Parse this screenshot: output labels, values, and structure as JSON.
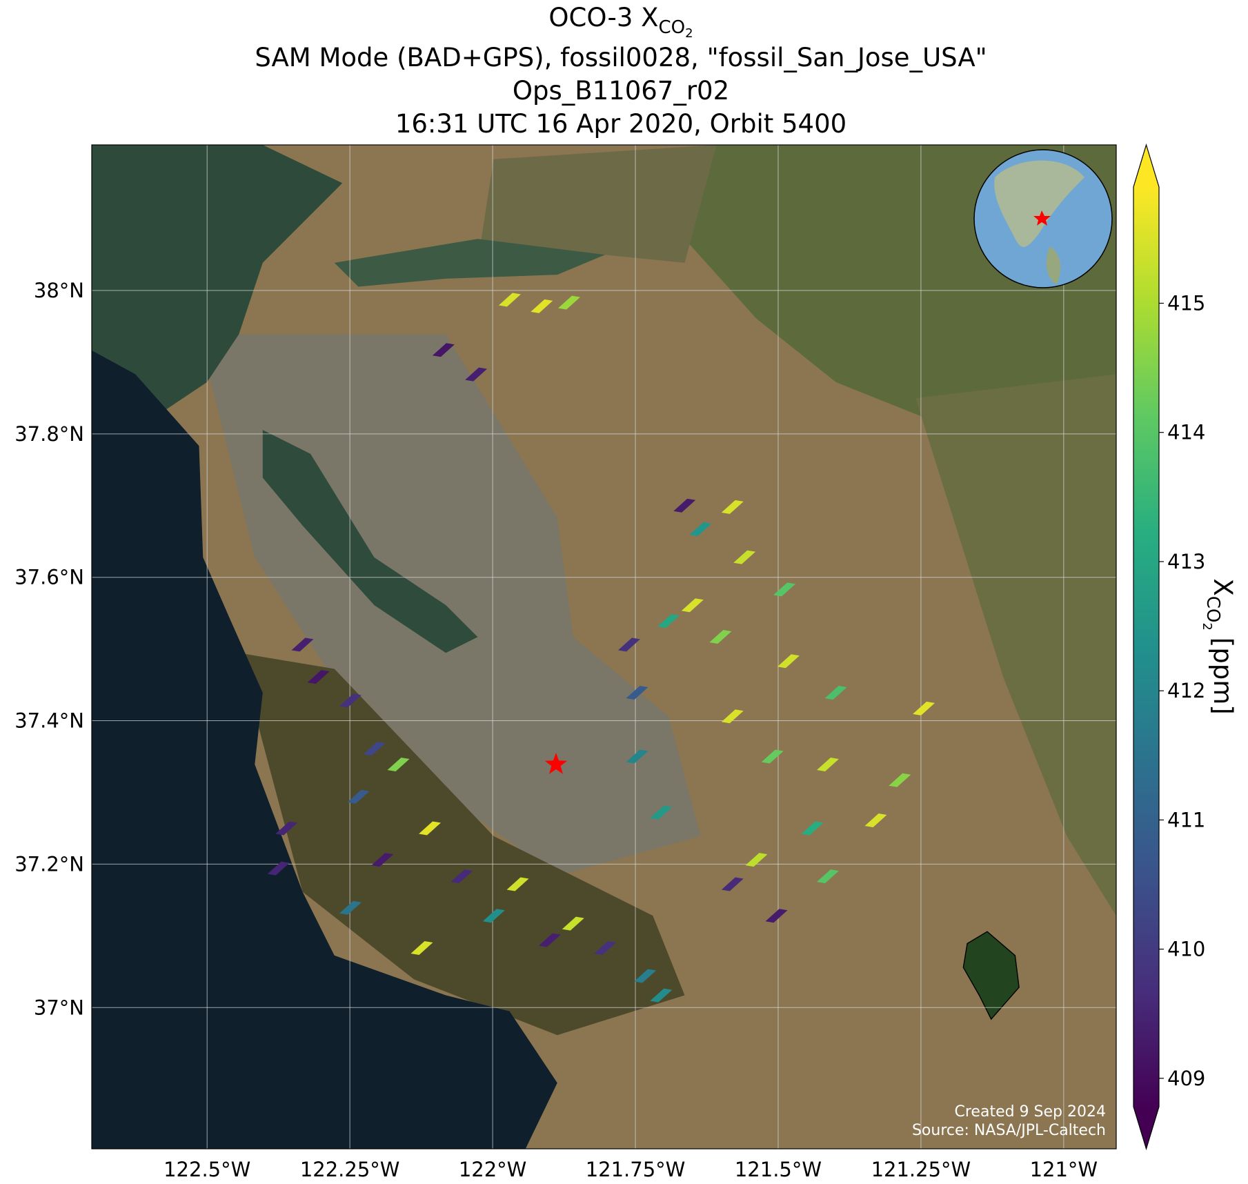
{
  "chart_data": {
    "type": "map",
    "title": {
      "text": "OCO-3 X",
      "subscript": "CO",
      "subsubscript": "2"
    },
    "subtitles": [
      "SAM Mode (BAD+GPS), fossil0028, \"fossil_San_Jose_USA\"",
      "Ops_B11067_r02",
      "16:31 UTC 16 Apr 2020, Orbit 5400"
    ],
    "xlim": [
      -122.702,
      -120.908
    ],
    "ylim": [
      36.803,
      38.203
    ],
    "xticks": [
      {
        "value": -122.5,
        "label": "122.5°W"
      },
      {
        "value": -122.25,
        "label": "122.25°W"
      },
      {
        "value": -122,
        "label": "122°W"
      },
      {
        "value": -121.75,
        "label": "121.75°W"
      },
      {
        "value": -121.5,
        "label": "121.5°W"
      },
      {
        "value": -121.25,
        "label": "121.25°W"
      },
      {
        "value": -121,
        "label": "121°W"
      }
    ],
    "yticks": [
      {
        "value": 37,
        "label": "37°N"
      },
      {
        "value": 37.2,
        "label": "37.2°N"
      },
      {
        "value": 37.4,
        "label": "37.4°N"
      },
      {
        "value": 37.6,
        "label": "37.6°N"
      },
      {
        "value": 37.8,
        "label": "37.8°N"
      },
      {
        "value": 38,
        "label": "38°N"
      }
    ],
    "grid": true,
    "colormap": "viridis",
    "clim": [
      408.78,
      415.9
    ],
    "colorbar_ticks": [
      409,
      410,
      411,
      412,
      413,
      414,
      415
    ],
    "colorbar_label": {
      "text": "X",
      "subscript": "CO",
      "subsubscript": "2",
      "unit": "[ppm]"
    },
    "soundings": {
      "x": [
        -121.914,
        -121.866,
        -121.97,
        -122.086,
        -122.029,
        -121.664,
        -121.58,
        -121.636,
        -121.559,
        -121.489,
        -121.65,
        -121.692,
        -121.761,
        -121.601,
        -121.482,
        -121.399,
        -121.747,
        -121.747,
        -121.58,
        -121.51,
        -121.413,
        -121.287,
        -121.329,
        -121.44,
        -121.538,
        -121.58,
        -121.503,
        -121.413,
        -121.705,
        -121.245,
        -122.333,
        -122.305,
        -122.249,
        -122.207,
        -122.165,
        -122.361,
        -122.235,
        -122.11,
        -122.193,
        -122.249,
        -122.054,
        -121.956,
        -121.998,
        -121.859,
        -121.803,
        -122.124,
        -121.9,
        -121.705,
        -121.733,
        -122.375
      ],
      "y": [
        37.978,
        37.983,
        37.987,
        37.917,
        37.883,
        37.7,
        37.698,
        37.667,
        37.628,
        37.583,
        37.561,
        37.539,
        37.506,
        37.517,
        37.483,
        37.439,
        37.439,
        37.35,
        37.406,
        37.35,
        37.339,
        37.317,
        37.261,
        37.25,
        37.206,
        37.172,
        37.128,
        37.183,
        37.272,
        37.417,
        37.506,
        37.461,
        37.428,
        37.361,
        37.339,
        37.25,
        37.294,
        37.25,
        37.206,
        37.139,
        37.183,
        37.172,
        37.128,
        37.117,
        37.083,
        37.083,
        37.094,
        37.017,
        37.044,
        37.194
      ],
      "values": [
        415.6,
        414.8,
        415.5,
        409.2,
        409.4,
        409.3,
        415.5,
        412.5,
        415.3,
        414.0,
        415.5,
        413.0,
        409.8,
        414.5,
        415.4,
        413.8,
        410.8,
        412.0,
        415.5,
        414.2,
        415.3,
        414.6,
        415.5,
        413.2,
        415.2,
        409.6,
        409.3,
        414.0,
        412.6,
        415.6,
        409.4,
        409.2,
        409.8,
        410.3,
        414.5,
        409.5,
        410.8,
        415.6,
        409.3,
        411.5,
        409.6,
        415.4,
        412.3,
        415.3,
        409.8,
        415.5,
        409.4,
        412.2,
        411.8,
        409.5
      ]
    },
    "target": {
      "x": -121.889,
      "y": 37.339
    },
    "credits": [
      "Created 9 Sep 2024",
      "Source: NASA/JPL-Caltech"
    ]
  }
}
